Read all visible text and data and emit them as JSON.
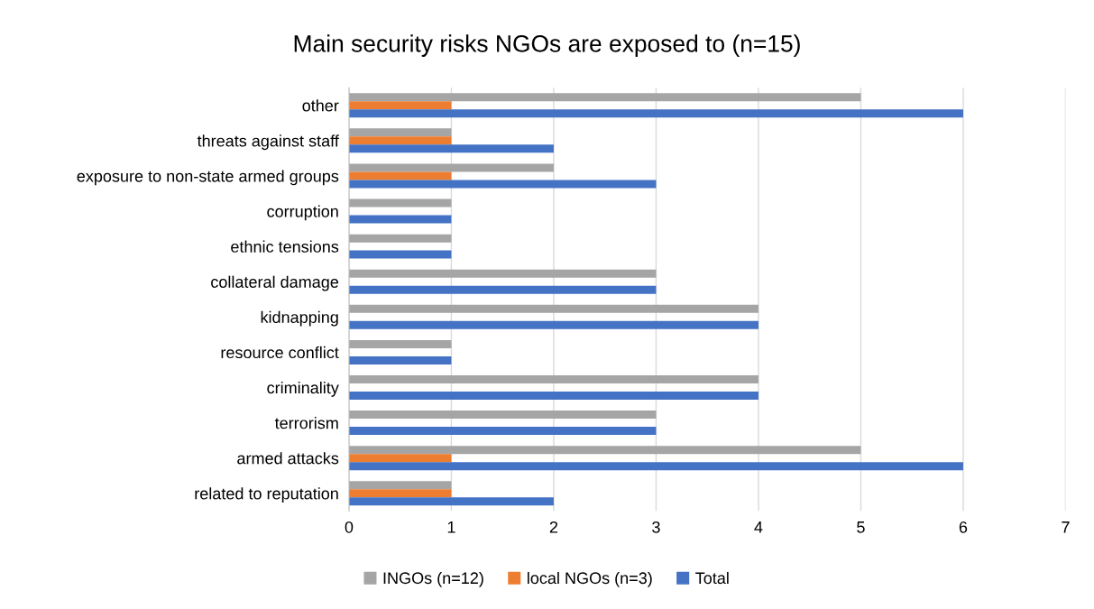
{
  "chart_data": {
    "type": "bar",
    "orientation": "horizontal",
    "title": "Main security risks NGOs are exposed to (n=15)",
    "categories": [
      "other",
      "threats against staff",
      "exposure to non-state armed groups",
      "corruption",
      "ethnic tensions",
      "collateral damage",
      "kidnapping",
      "resource conflict",
      "criminality",
      "terrorism",
      "armed attacks",
      "related to reputation"
    ],
    "series": [
      {
        "name": "INGOs (n=12)",
        "color": "#a5a5a5",
        "values": [
          5,
          1,
          2,
          1,
          1,
          3,
          4,
          1,
          4,
          3,
          5,
          1
        ]
      },
      {
        "name": "local NGOs (n=3)",
        "color": "#ed7d31",
        "values": [
          1,
          1,
          1,
          0,
          0,
          0,
          0,
          0,
          0,
          0,
          1,
          1
        ]
      },
      {
        "name": "Total",
        "color": "#4472c4",
        "values": [
          6,
          2,
          3,
          1,
          1,
          3,
          4,
          1,
          4,
          3,
          6,
          2
        ]
      }
    ],
    "xlim": [
      0,
      7
    ],
    "xticks": [
      0,
      1,
      2,
      3,
      4,
      5,
      6,
      7
    ],
    "grid": "x",
    "legend": "bottom"
  }
}
